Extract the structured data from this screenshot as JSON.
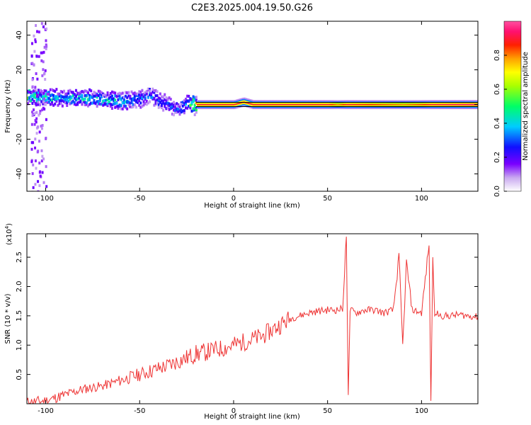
{
  "figure_title": "C2E3.2025.004.19.50.G26",
  "chart_data": [
    {
      "type": "heatmap",
      "title": "",
      "xlabel": "Height of straight line (km)",
      "ylabel": "Frequency (Hz)",
      "xlim": [
        -110,
        130
      ],
      "ylim": [
        -50,
        48
      ],
      "xticks": [
        -100,
        -50,
        0,
        50,
        100
      ],
      "yticks": [
        -40,
        -20,
        0,
        20,
        40
      ],
      "colorbar": {
        "label": "Normalized spectral amplitude",
        "range": [
          0,
          1
        ],
        "ticks": [
          "0.0",
          "0.2",
          "0.4",
          "0.6",
          "0.8"
        ],
        "colormap": "rainbow (white-violet-blue-cyan-green-yellow-orange-red-pink)"
      },
      "ridge": {
        "description_points": [
          {
            "x": -110,
            "f": 5,
            "amp": 0.5
          },
          {
            "x": -100,
            "f": 4,
            "amp": 0.45
          },
          {
            "x": -90,
            "f": 4,
            "amp": 0.45
          },
          {
            "x": -80,
            "f": 4,
            "amp": 0.45
          },
          {
            "x": -70,
            "f": 3,
            "amp": 0.4
          },
          {
            "x": -60,
            "f": 2,
            "amp": 0.4
          },
          {
            "x": -50,
            "f": 3,
            "amp": 0.35
          },
          {
            "x": -45,
            "f": 6,
            "amp": 0.3
          },
          {
            "x": -40,
            "f": 2,
            "amp": 0.3
          },
          {
            "x": -35,
            "f": 0,
            "amp": 0.3
          },
          {
            "x": -30,
            "f": -3,
            "amp": 0.3
          },
          {
            "x": -25,
            "f": 1,
            "amp": 0.35
          },
          {
            "x": -20,
            "f": 0,
            "amp": 0.9
          },
          {
            "x": 0,
            "f": 0,
            "amp": 0.9
          },
          {
            "x": 5,
            "f": 1.5,
            "amp": 0.9
          },
          {
            "x": 10,
            "f": 0,
            "amp": 0.9
          },
          {
            "x": 50,
            "f": 0,
            "amp": 0.9
          },
          {
            "x": 55,
            "f": 0,
            "amp": 0.8
          },
          {
            "x": 60,
            "f": 0,
            "amp": 0.9
          },
          {
            "x": 90,
            "f": 0,
            "amp": 0.8
          },
          {
            "x": 100,
            "f": 0,
            "amp": 0.85
          },
          {
            "x": 105,
            "f": 0,
            "amp": 0.9
          },
          {
            "x": 130,
            "f": 0,
            "amp": 0.95
          }
        ]
      }
    },
    {
      "type": "line",
      "title": "",
      "xlabel": "Height of straight line (km)",
      "ylabel": "SNR (10 * v/v)",
      "y_multiplier_label": "(x10",
      "y_multiplier_exp": "4",
      "y_multiplier_close": ")",
      "xlim": [
        -110,
        130
      ],
      "ylim": [
        0,
        2.9
      ],
      "xticks": [
        -100,
        -50,
        0,
        50,
        100
      ],
      "yticks": [
        "0.5",
        "1.0",
        "1.5",
        "2.0",
        "2.5"
      ],
      "series": [
        {
          "color": "#ee3333",
          "x": [
            -110,
            -100,
            -95,
            -90,
            -85,
            -80,
            -75,
            -70,
            -65,
            -60,
            -55,
            -50,
            -45,
            -40,
            -35,
            -30,
            -25,
            -20,
            -15,
            -10,
            -5,
            0,
            5,
            10,
            15,
            20,
            25,
            30,
            35,
            40,
            45,
            50,
            55,
            58,
            60,
            61,
            62,
            65,
            70,
            75,
            80,
            85,
            88,
            90,
            92,
            95,
            100,
            104,
            105,
            106,
            107,
            108,
            110,
            115,
            120,
            125,
            130
          ],
          "y": [
            0.02,
            0.05,
            0.1,
            0.15,
            0.2,
            0.25,
            0.28,
            0.3,
            0.35,
            0.4,
            0.45,
            0.5,
            0.55,
            0.6,
            0.65,
            0.72,
            0.78,
            0.85,
            0.88,
            0.92,
            0.95,
            1.0,
            1.05,
            1.1,
            1.15,
            1.25,
            1.35,
            1.45,
            1.5,
            1.55,
            1.58,
            1.6,
            1.6,
            1.62,
            2.85,
            0.15,
            1.6,
            1.55,
            1.6,
            1.6,
            1.55,
            1.6,
            2.5,
            1.0,
            2.4,
            1.6,
            1.55,
            2.7,
            0.05,
            2.5,
            1.5,
            1.55,
            1.5,
            1.5,
            1.52,
            1.5,
            1.48
          ]
        }
      ]
    }
  ]
}
